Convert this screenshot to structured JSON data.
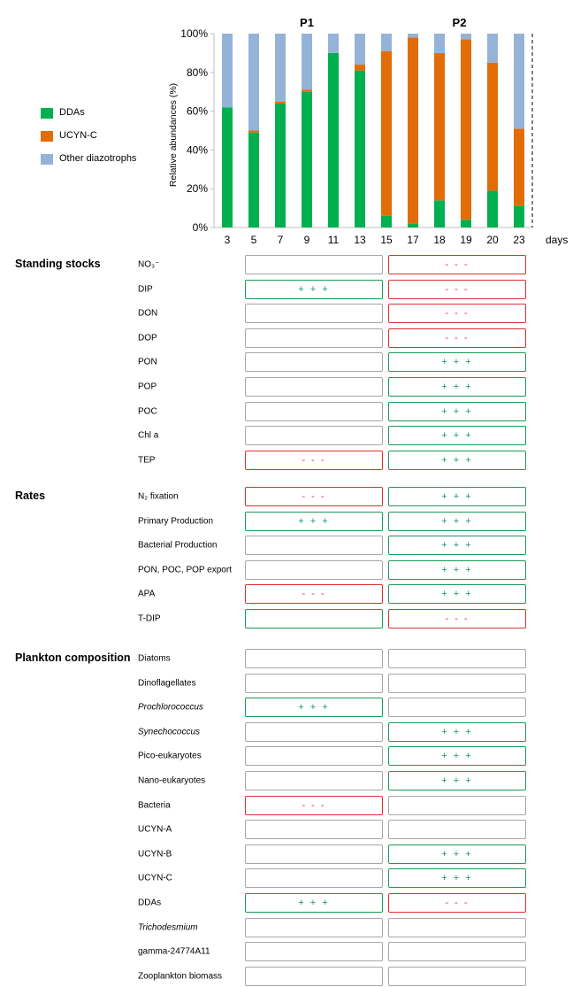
{
  "colors": {
    "ddas": "#00b050",
    "ucyn_c": "#e36c09",
    "other": "#95b3d7",
    "positive": "#1a9a5a",
    "negative": "#e03030",
    "neutral": "#a6a6a6"
  },
  "chart_data": {
    "type": "bar",
    "stacked": true,
    "ylabel": "Relative abundances (%)",
    "xlabel": "days",
    "ylim": [
      0,
      100
    ],
    "yticks": [
      "0%",
      "20%",
      "40%",
      "60%",
      "80%",
      "100%"
    ],
    "period_labels": [
      "P1",
      "P2"
    ],
    "categories": [
      "3",
      "5",
      "7",
      "9",
      "11",
      "13",
      "15",
      "17",
      "18",
      "19",
      "20",
      "23"
    ],
    "series": [
      {
        "name": "DDAs",
        "color": "#00b050",
        "values": [
          62,
          49,
          64,
          70,
          90,
          81,
          6,
          2,
          14,
          4,
          19,
          11
        ]
      },
      {
        "name": "UCYN-C",
        "color": "#e36c09",
        "values": [
          0,
          1,
          1,
          1,
          0,
          3,
          85,
          96,
          76,
          93,
          66,
          40
        ]
      },
      {
        "name": "Other diazotrophs",
        "color": "#95b3d7",
        "values": [
          38,
          50,
          35,
          29,
          10,
          16,
          9,
          2,
          10,
          3,
          15,
          49
        ]
      }
    ],
    "legend": [
      "DDAs",
      "UCYN-C",
      "Other diazotrophs"
    ],
    "legend_position": "left"
  },
  "sections": [
    {
      "title": "Standing stocks",
      "rows": [
        {
          "label": "NO₃⁻",
          "p1": "",
          "p2": "- - -"
        },
        {
          "label": "DIP",
          "p1": "+ + +",
          "p2": "- - -"
        },
        {
          "label": "DON",
          "p1": "",
          "p2": "- - -"
        },
        {
          "label": "DOP",
          "p1": "",
          "p2": "- - -"
        },
        {
          "label": "PON",
          "p1": "",
          "p2": "+ + +"
        },
        {
          "label": "POP",
          "p1": "",
          "p2": "+ + +"
        },
        {
          "label": "POC",
          "p1": "",
          "p2": "+ + +"
        },
        {
          "label": "Chl a",
          "p1": "",
          "p2": "+ + +"
        },
        {
          "label": "TEP",
          "p1": "- - -",
          "p2": "+ + +"
        }
      ]
    },
    {
      "title": "Rates",
      "rows": [
        {
          "label": "N₂ fixation",
          "p1": "- - -",
          "p2": "+ + +"
        },
        {
          "label": "Primary Production",
          "p1": "+ + +",
          "p2": "+ + +"
        },
        {
          "label": "Bacterial Production",
          "p1": "",
          "p2": "+ + +"
        },
        {
          "label": "PON, POC, POP export",
          "p1": "",
          "p2": "+ + +"
        },
        {
          "label": "APA",
          "p1": "- - -",
          "p2": "+ + +"
        },
        {
          "label": "T-DIP",
          "p1": "",
          "p2": "- - -",
          "p1_sign": "+"
        }
      ]
    },
    {
      "title": "Plankton composition",
      "rows": [
        {
          "label": "Diatoms",
          "p1": "",
          "p2": ""
        },
        {
          "label": "Dinoflagellates",
          "p1": "",
          "p2": ""
        },
        {
          "label": "Prochlorococcus",
          "italic": true,
          "p1": "+ + +",
          "p2": ""
        },
        {
          "label": "Synechococcus",
          "italic": true,
          "p1": "",
          "p2": "+ + +"
        },
        {
          "label": "Pico-eukaryotes",
          "p1": "",
          "p2": "+ + +"
        },
        {
          "label": "Nano-eukaryotes",
          "p1": "",
          "p2": "+ + +"
        },
        {
          "label": "Bacteria",
          "p1": "- - -",
          "p2": ""
        },
        {
          "label": "UCYN-A",
          "p1": "",
          "p2": ""
        },
        {
          "label": "UCYN-B",
          "p1": "",
          "p2": "+ + +"
        },
        {
          "label": "UCYN-C",
          "p1": "",
          "p2": "+ + +"
        },
        {
          "label": "DDAs",
          "p1": "+ + +",
          "p2": "- - -"
        },
        {
          "label": "Trichodesmium",
          "italic": true,
          "p1": "",
          "p2": ""
        },
        {
          "label": "gamma-24774A11",
          "p1": "",
          "p2": ""
        },
        {
          "label": "Zooplankton biomass",
          "p1": "",
          "p2": ""
        }
      ]
    }
  ]
}
